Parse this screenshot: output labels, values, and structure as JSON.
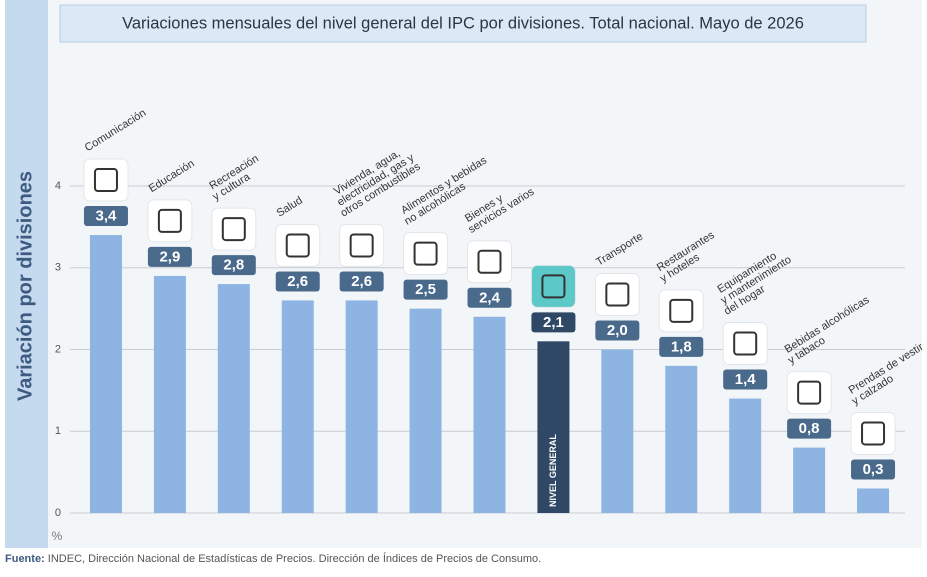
{
  "chart_data": {
    "type": "bar",
    "title": "Variaciones mensuales del nivel general del IPC por divisiones. Total nacional. Mayo de 2026",
    "y_label": "Variación por divisiones",
    "y_unit": "%",
    "categories": [
      "Comunicación",
      "Educación",
      "Recreación\ny cultura",
      "Salud",
      "Vivienda, agua,\nelectricidad, gas y\notros combustibles",
      "Alimentos y bebidas\nno alcohólicas",
      "Bienes y\nservicios varios",
      "NIVEL GENERAL",
      "Transporte",
      "Restaurantes\ny hoteles",
      "Equipamiento\ny mantenimiento\ndel hogar",
      "Bebidas alcohólicas\ny tabaco",
      "Prendas de vestir\ny calzado"
    ],
    "values": [
      3.4,
      2.9,
      2.8,
      2.6,
      2.6,
      2.5,
      2.4,
      2.1,
      2.0,
      1.8,
      1.4,
      0.8,
      0.3
    ],
    "value_labels": [
      "3,4",
      "2,9",
      "2,8",
      "2,6",
      "2,6",
      "2,5",
      "2,4",
      "2,1",
      "2,0",
      "1,8",
      "1,4",
      "0,8",
      "0,3"
    ],
    "colors": [
      "#8db4e2",
      "#8db4e2",
      "#8db4e2",
      "#8db4e2",
      "#8db4e2",
      "#8db4e2",
      "#8db4e2",
      "#2f4866",
      "#8db4e2",
      "#8db4e2",
      "#8db4e2",
      "#8db4e2",
      "#8db4e2"
    ],
    "ylim": [
      0,
      4
    ],
    "yticks": [
      0,
      1,
      2,
      3,
      4
    ],
    "grid": true,
    "source_label": "Fuente:",
    "source": "INDEC, Dirección Nacional de Estadísticas de Precios. Dirección de Índices de Precios de Consumo."
  }
}
